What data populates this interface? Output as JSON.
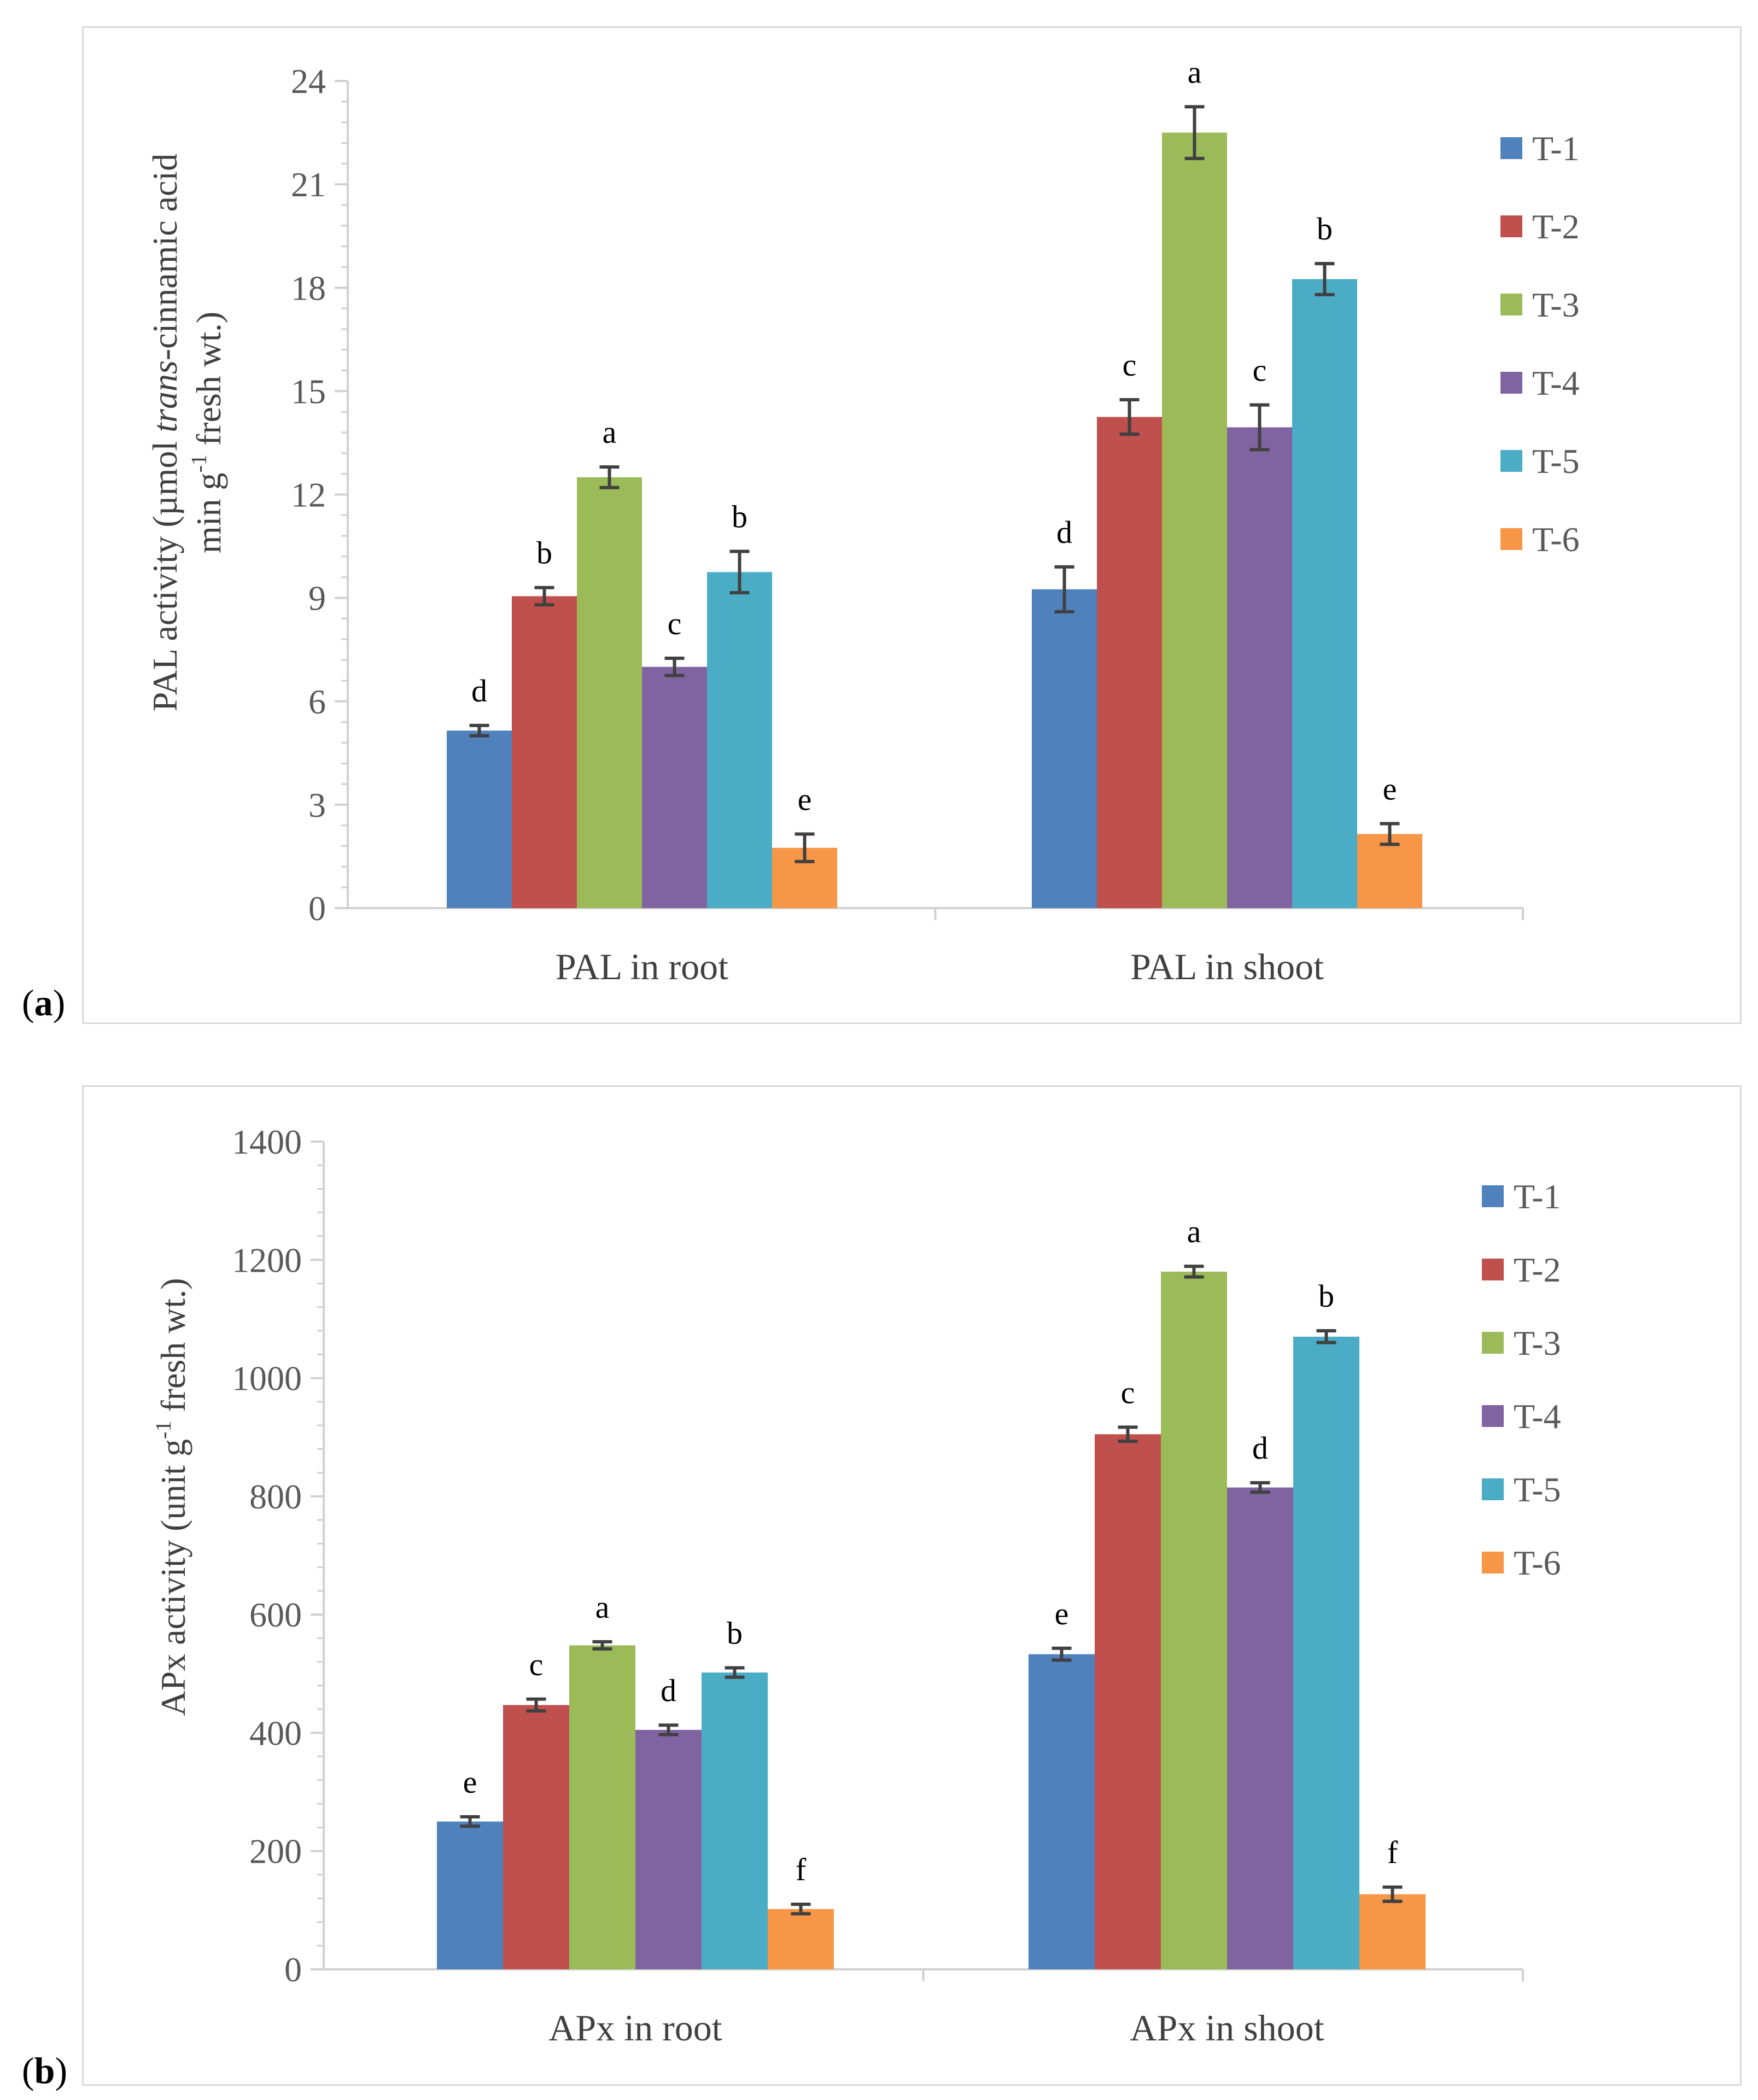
{
  "chart_data": [
    {
      "type": "bar",
      "panel_label": "a",
      "categories": [
        "PAL in root",
        "PAL in shoot"
      ],
      "ylabel_line1_pre": "PAL activity (µmol ",
      "ylabel_line1_ital": "trans",
      "ylabel_line1_post": "-cinnamic acid",
      "ylabel_line2_pre": "min g",
      "ylabel_line2_sup": "-1",
      "ylabel_line2_post": " fresh wt.)",
      "ylim": [
        0,
        24
      ],
      "yticks": [
        0,
        3,
        6,
        9,
        12,
        15,
        18,
        21,
        24
      ],
      "minor_step": 0.6,
      "grid": false,
      "legend_position": "right",
      "series": [
        {
          "name": "T-1",
          "color": "#4f81bd",
          "values": [
            5.15,
            9.25
          ],
          "errors": [
            0.15,
            0.65
          ],
          "letters": [
            "d",
            "d"
          ]
        },
        {
          "name": "T-2",
          "color": "#c0504d",
          "values": [
            9.05,
            14.25
          ],
          "errors": [
            0.25,
            0.5
          ],
          "letters": [
            "b",
            "c"
          ]
        },
        {
          "name": "T-3",
          "color": "#9bbb59",
          "values": [
            12.5,
            22.5
          ],
          "errors": [
            0.3,
            0.75
          ],
          "letters": [
            "a",
            "a"
          ]
        },
        {
          "name": "T-4",
          "color": "#8064a2",
          "values": [
            7.0,
            13.95
          ],
          "errors": [
            0.25,
            0.65
          ],
          "letters": [
            "c",
            "c"
          ]
        },
        {
          "name": "T-5",
          "color": "#4bacc6",
          "values": [
            9.75,
            18.25
          ],
          "errors": [
            0.6,
            0.45
          ],
          "letters": [
            "b",
            "b"
          ]
        },
        {
          "name": "T-6",
          "color": "#f79646",
          "values": [
            1.75,
            2.15
          ],
          "errors": [
            0.4,
            0.3
          ],
          "letters": [
            "e",
            "e"
          ]
        }
      ]
    },
    {
      "type": "bar",
      "panel_label": "b",
      "categories": [
        "APx in root",
        "APx in shoot"
      ],
      "ylabel_line1_pre": "APx activity (unit g",
      "ylabel_line1_sup": "-1",
      "ylabel_line1_post": " fresh wt.)",
      "ylim": [
        0,
        1400
      ],
      "yticks": [
        0,
        200,
        400,
        600,
        800,
        1000,
        1200,
        1400
      ],
      "minor_step": 40,
      "grid": false,
      "legend_position": "right",
      "series": [
        {
          "name": "T-1",
          "color": "#4f81bd",
          "values": [
            250,
            533
          ],
          "errors": [
            8,
            10
          ],
          "letters": [
            "e",
            "e"
          ]
        },
        {
          "name": "T-2",
          "color": "#c0504d",
          "values": [
            447,
            905
          ],
          "errors": [
            10,
            12
          ],
          "letters": [
            "c",
            "c"
          ]
        },
        {
          "name": "T-3",
          "color": "#9bbb59",
          "values": [
            548,
            1180
          ],
          "errors": [
            6,
            9
          ],
          "letters": [
            "a",
            "a"
          ]
        },
        {
          "name": "T-4",
          "color": "#8064a2",
          "values": [
            405,
            815
          ],
          "errors": [
            8,
            8
          ],
          "letters": [
            "d",
            "d"
          ]
        },
        {
          "name": "T-5",
          "color": "#4bacc6",
          "values": [
            502,
            1070
          ],
          "errors": [
            8,
            10
          ],
          "letters": [
            "b",
            "b"
          ]
        },
        {
          "name": "T-6",
          "color": "#f79646",
          "values": [
            102,
            127
          ],
          "errors": [
            8,
            12
          ],
          "letters": [
            "f",
            "f"
          ]
        }
      ]
    }
  ]
}
